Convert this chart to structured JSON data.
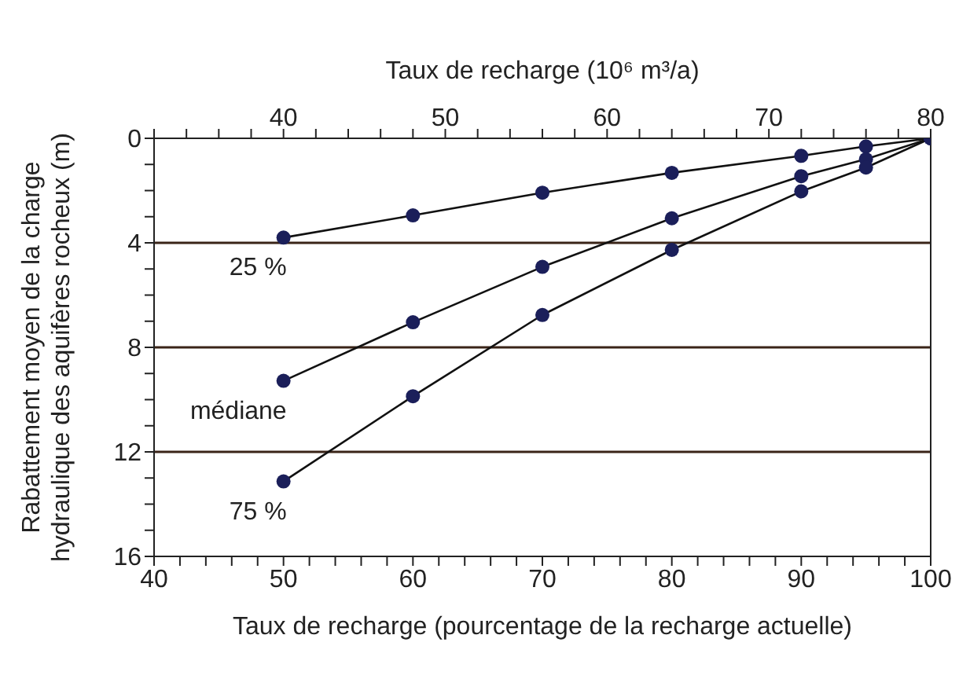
{
  "chart_data": {
    "type": "line",
    "xlabel": "Taux de recharge  (pourcentage de la recharge actuelle)",
    "x2label": "Taux de recharge (10⁶ m³/a)",
    "ylabel": "Rabattement moyen de la charge\nhydraulique des aquifères rocheux (m)",
    "x": [
      50,
      60,
      70,
      80,
      90,
      95,
      100
    ],
    "series": [
      {
        "name": "25 %",
        "color": "#1b1f5a",
        "values": [
          3.8,
          2.95,
          2.08,
          1.32,
          0.67,
          0.31,
          0
        ]
      },
      {
        "name": "médiane",
        "color": "#1b1f5a",
        "values": [
          9.28,
          7.04,
          4.92,
          3.06,
          1.45,
          0.8,
          0
        ]
      },
      {
        "name": "75 %",
        "color": "#1b1f5a",
        "values": [
          13.13,
          9.87,
          6.76,
          4.27,
          2.03,
          1.12,
          0
        ]
      }
    ],
    "xlim": [
      40,
      100
    ],
    "xticks": [
      40,
      {
        "value": 42,
        "label": null
      },
      {
        "value": 44,
        "label": null
      },
      {
        "value": 46,
        "label": null
      },
      {
        "value": 48,
        "label": null
      },
      50,
      {
        "value": 52,
        "label": null
      },
      {
        "value": 54,
        "label": null
      },
      {
        "value": 56,
        "label": null
      },
      {
        "value": 58,
        "label": null
      },
      60,
      {
        "value": 62,
        "label": null
      },
      {
        "value": 64,
        "label": null
      },
      {
        "value": 66,
        "label": null
      },
      {
        "value": 68,
        "label": null
      },
      70,
      {
        "value": 72,
        "label": null
      },
      {
        "value": 74,
        "label": null
      },
      {
        "value": 76,
        "label": null
      },
      {
        "value": 78,
        "label": null
      },
      80,
      {
        "value": 82,
        "label": null
      },
      {
        "value": 84,
        "label": null
      },
      {
        "value": 86,
        "label": null
      },
      {
        "value": 88,
        "label": null
      },
      90,
      {
        "value": 92,
        "label": null
      },
      {
        "value": 94,
        "label": null
      },
      {
        "value": 96,
        "label": null
      },
      {
        "value": 98,
        "label": null
      },
      100
    ],
    "x2lim": [
      32,
      80
    ],
    "x2ticks": [
      {
        "value": 32,
        "label": null
      },
      {
        "value": 34,
        "label": null
      },
      {
        "value": 36,
        "label": null
      },
      {
        "value": 38,
        "label": null
      },
      40,
      {
        "value": 42,
        "label": null
      },
      {
        "value": 44,
        "label": null
      },
      {
        "value": 46,
        "label": null
      },
      {
        "value": 48,
        "label": null
      },
      50,
      {
        "value": 52,
        "label": null
      },
      {
        "value": 54,
        "label": null
      },
      {
        "value": 56,
        "label": null
      },
      {
        "value": 58,
        "label": null
      },
      60,
      {
        "value": 62,
        "label": null
      },
      {
        "value": 64,
        "label": null
      },
      {
        "value": 66,
        "label": null
      },
      {
        "value": 68,
        "label": null
      },
      70,
      {
        "value": 72,
        "label": null
      },
      {
        "value": 74,
        "label": null
      },
      {
        "value": 76,
        "label": null
      },
      {
        "value": 78,
        "label": null
      },
      80
    ],
    "ylim": [
      16,
      0
    ],
    "yticks": [
      0,
      {
        "value": 1,
        "label": null
      },
      {
        "value": 2,
        "label": null
      },
      {
        "value": 3,
        "label": null
      },
      4,
      {
        "value": 5,
        "label": null
      },
      {
        "value": 6,
        "label": null
      },
      {
        "value": 7,
        "label": null
      },
      8,
      {
        "value": 9,
        "label": null
      },
      {
        "value": 10,
        "label": null
      },
      {
        "value": 11,
        "label": null
      },
      12,
      {
        "value": 13,
        "label": null
      },
      {
        "value": 14,
        "label": null
      },
      {
        "value": 15,
        "label": null
      },
      16
    ],
    "ref_lines": [
      {
        "axis": "y",
        "value": 4,
        "color": "#3a2418"
      },
      {
        "axis": "y",
        "value": 8,
        "color": "#3a2418"
      },
      {
        "axis": "y",
        "value": 12,
        "color": "#3a2418"
      }
    ],
    "marker": "circle",
    "line_style": "solid",
    "legend": false
  }
}
